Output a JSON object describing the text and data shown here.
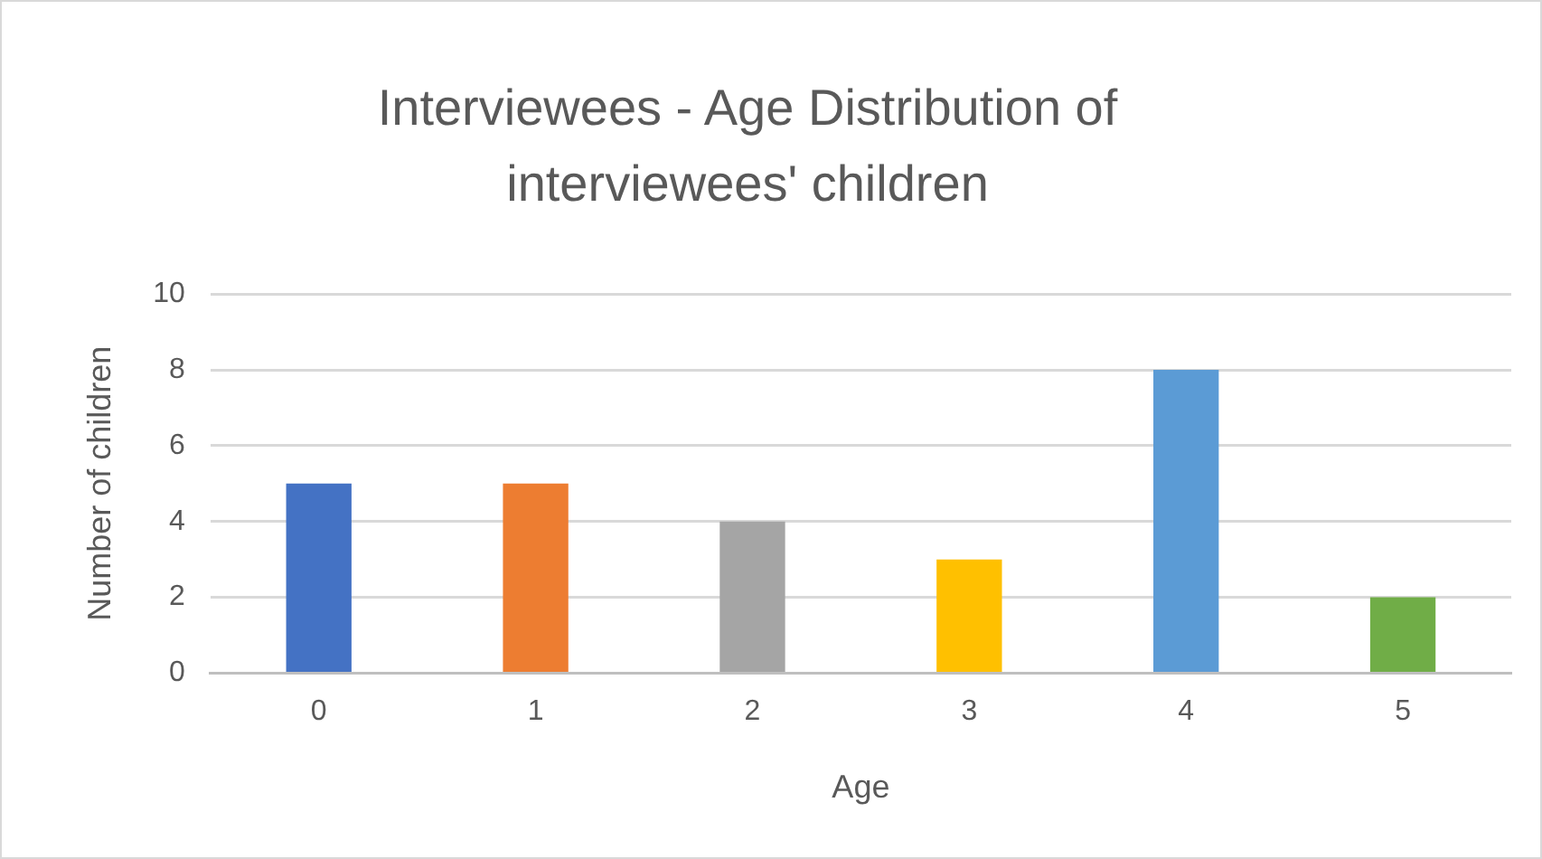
{
  "chart_data": {
    "type": "bar",
    "title": "Interviewees - Age Distribution of interviewees' children",
    "xlabel": "Age",
    "ylabel": "Number of children",
    "categories": [
      "0",
      "1",
      "2",
      "3",
      "4",
      "5"
    ],
    "values": [
      5,
      5,
      4,
      3,
      8,
      2
    ],
    "colors": [
      "#4472c4",
      "#ed7d31",
      "#a5a5a5",
      "#ffc000",
      "#5b9bd5",
      "#70ad47"
    ],
    "ylim": [
      0,
      10
    ],
    "yticks": [
      0,
      2,
      4,
      6,
      8,
      10
    ],
    "grid": "y",
    "legend": false
  }
}
